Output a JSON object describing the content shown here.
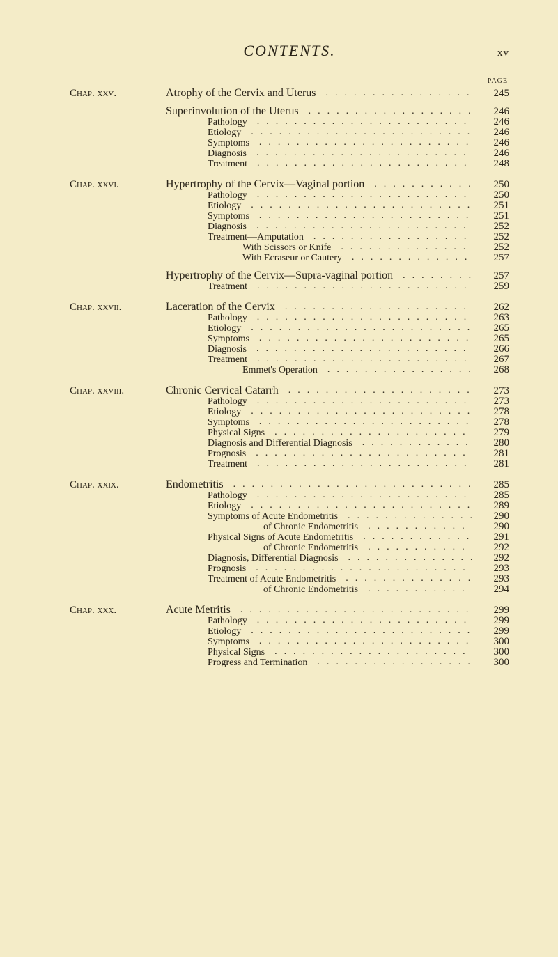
{
  "colors": {
    "background": "#f4ecc8",
    "text": "#2a2419"
  },
  "typography": {
    "base_family": "Times New Roman",
    "running_head_size_pt": 16,
    "body_size_pt": 11,
    "chap_small_caps": true
  },
  "header": {
    "running_head": "CONTENTS.",
    "roman_page": "xv",
    "page_label": "PAGE"
  },
  "entries": [
    {
      "chap": "Chap. xxv.",
      "level": 0,
      "text": "Atrophy of the Cervix and Uterus",
      "page": "245",
      "gap": "none"
    },
    {
      "chap": "",
      "level": 0,
      "text": "Superinvolution of the Uterus",
      "page": "246",
      "gap": "before"
    },
    {
      "chap": "",
      "level": 1,
      "text": "Pathology",
      "page": "246",
      "gap": "none"
    },
    {
      "chap": "",
      "level": 1,
      "text": "Etiology",
      "page": "246",
      "gap": "none"
    },
    {
      "chap": "",
      "level": 1,
      "text": "Symptoms",
      "page": "246",
      "gap": "none"
    },
    {
      "chap": "",
      "level": 1,
      "text": "Diagnosis",
      "page": "246",
      "gap": "none"
    },
    {
      "chap": "",
      "level": 1,
      "text": "Treatment",
      "page": "248",
      "gap": "none"
    },
    {
      "chap": "Chap. xxvi.",
      "level": 0,
      "text": "Hypertrophy of the Cervix—Vaginal portion",
      "page": "250",
      "gap": "section"
    },
    {
      "chap": "",
      "level": 1,
      "text": "Pathology",
      "page": "250",
      "gap": "none"
    },
    {
      "chap": "",
      "level": 1,
      "text": "Etiology",
      "page": "251",
      "gap": "none"
    },
    {
      "chap": "",
      "level": 1,
      "text": "Symptoms",
      "page": "251",
      "gap": "none"
    },
    {
      "chap": "",
      "level": 1,
      "text": "Diagnosis",
      "page": "252",
      "gap": "none"
    },
    {
      "chap": "",
      "level": 1,
      "text": "Treatment—Amputation",
      "page": "252",
      "gap": "none"
    },
    {
      "chap": "",
      "level": 2,
      "text": "With Scissors or Knife",
      "page": "252",
      "gap": "none"
    },
    {
      "chap": "",
      "level": 2,
      "text": "With Ecraseur or Cautery",
      "page": "257",
      "gap": "none"
    },
    {
      "chap": "",
      "level": 0,
      "text": "Hypertrophy of the Cervix—Supra-vaginal portion",
      "page": "257",
      "gap": "before"
    },
    {
      "chap": "",
      "level": 1,
      "text": "Treatment",
      "page": "259",
      "gap": "none"
    },
    {
      "chap": "Chap. xxvii.",
      "level": 0,
      "text": "Laceration of the Cervix",
      "page": "262",
      "gap": "section"
    },
    {
      "chap": "",
      "level": 1,
      "text": "Pathology",
      "page": "263",
      "gap": "none"
    },
    {
      "chap": "",
      "level": 1,
      "text": "Etiology",
      "page": "265",
      "gap": "none"
    },
    {
      "chap": "",
      "level": 1,
      "text": "Symptoms",
      "page": "265",
      "gap": "none"
    },
    {
      "chap": "",
      "level": 1,
      "text": "Diagnosis",
      "page": "266",
      "gap": "none"
    },
    {
      "chap": "",
      "level": 1,
      "text": "Treatment",
      "page": "267",
      "gap": "none"
    },
    {
      "chap": "",
      "level": 2,
      "text": "Emmet's Operation",
      "page": "268",
      "gap": "none"
    },
    {
      "chap": "Chap. xxviii.",
      "level": 0,
      "text": "Chronic Cervical Catarrh",
      "page": "273",
      "gap": "section"
    },
    {
      "chap": "",
      "level": 1,
      "text": "Pathology",
      "page": "273",
      "gap": "none"
    },
    {
      "chap": "",
      "level": 1,
      "text": "Etiology",
      "page": "278",
      "gap": "none"
    },
    {
      "chap": "",
      "level": 1,
      "text": "Symptoms",
      "page": "278",
      "gap": "none"
    },
    {
      "chap": "",
      "level": 1,
      "text": "Physical Signs",
      "page": "279",
      "gap": "none"
    },
    {
      "chap": "",
      "level": 1,
      "text": "Diagnosis and Differential Diagnosis",
      "page": "280",
      "gap": "none"
    },
    {
      "chap": "",
      "level": 1,
      "text": "Prognosis",
      "page": "281",
      "gap": "none"
    },
    {
      "chap": "",
      "level": 1,
      "text": "Treatment",
      "page": "281",
      "gap": "none"
    },
    {
      "chap": "Chap. xxix.",
      "level": 0,
      "text": "Endometritis",
      "page": "285",
      "gap": "section"
    },
    {
      "chap": "",
      "level": 1,
      "text": "Pathology",
      "page": "285",
      "gap": "none"
    },
    {
      "chap": "",
      "level": 1,
      "text": "Etiology",
      "page": "289",
      "gap": "none"
    },
    {
      "chap": "",
      "level": 1,
      "text": "Symptoms of Acute Endometritis",
      "page": "290",
      "gap": "none"
    },
    {
      "chap": "",
      "level": 3,
      "text": "of Chronic Endometritis",
      "page": "290",
      "gap": "none"
    },
    {
      "chap": "",
      "level": 1,
      "text": "Physical Signs of Acute Endometritis",
      "page": "291",
      "gap": "none"
    },
    {
      "chap": "",
      "level": 3,
      "text": "of Chronic Endometritis",
      "page": "292",
      "gap": "none"
    },
    {
      "chap": "",
      "level": 1,
      "text": "Diagnosis, Differential Diagnosis",
      "page": "292",
      "gap": "none"
    },
    {
      "chap": "",
      "level": 1,
      "text": "Prognosis",
      "page": "293",
      "gap": "none"
    },
    {
      "chap": "",
      "level": 1,
      "text": "Treatment of Acute Endometritis",
      "page": "293",
      "gap": "none"
    },
    {
      "chap": "",
      "level": 3,
      "text": "of Chronic Endometritis",
      "page": "294",
      "gap": "none"
    },
    {
      "chap": "Chap. xxx.",
      "level": 0,
      "text": "Acute Metritis",
      "page": "299",
      "gap": "section"
    },
    {
      "chap": "",
      "level": 1,
      "text": "Pathology",
      "page": "299",
      "gap": "none"
    },
    {
      "chap": "",
      "level": 1,
      "text": "Etiology",
      "page": "299",
      "gap": "none"
    },
    {
      "chap": "",
      "level": 1,
      "text": "Symptoms",
      "page": "300",
      "gap": "none"
    },
    {
      "chap": "",
      "level": 1,
      "text": "Physical Signs",
      "page": "300",
      "gap": "none"
    },
    {
      "chap": "",
      "level": 1,
      "text": "Progress and Termination",
      "page": "300",
      "gap": "none"
    }
  ]
}
